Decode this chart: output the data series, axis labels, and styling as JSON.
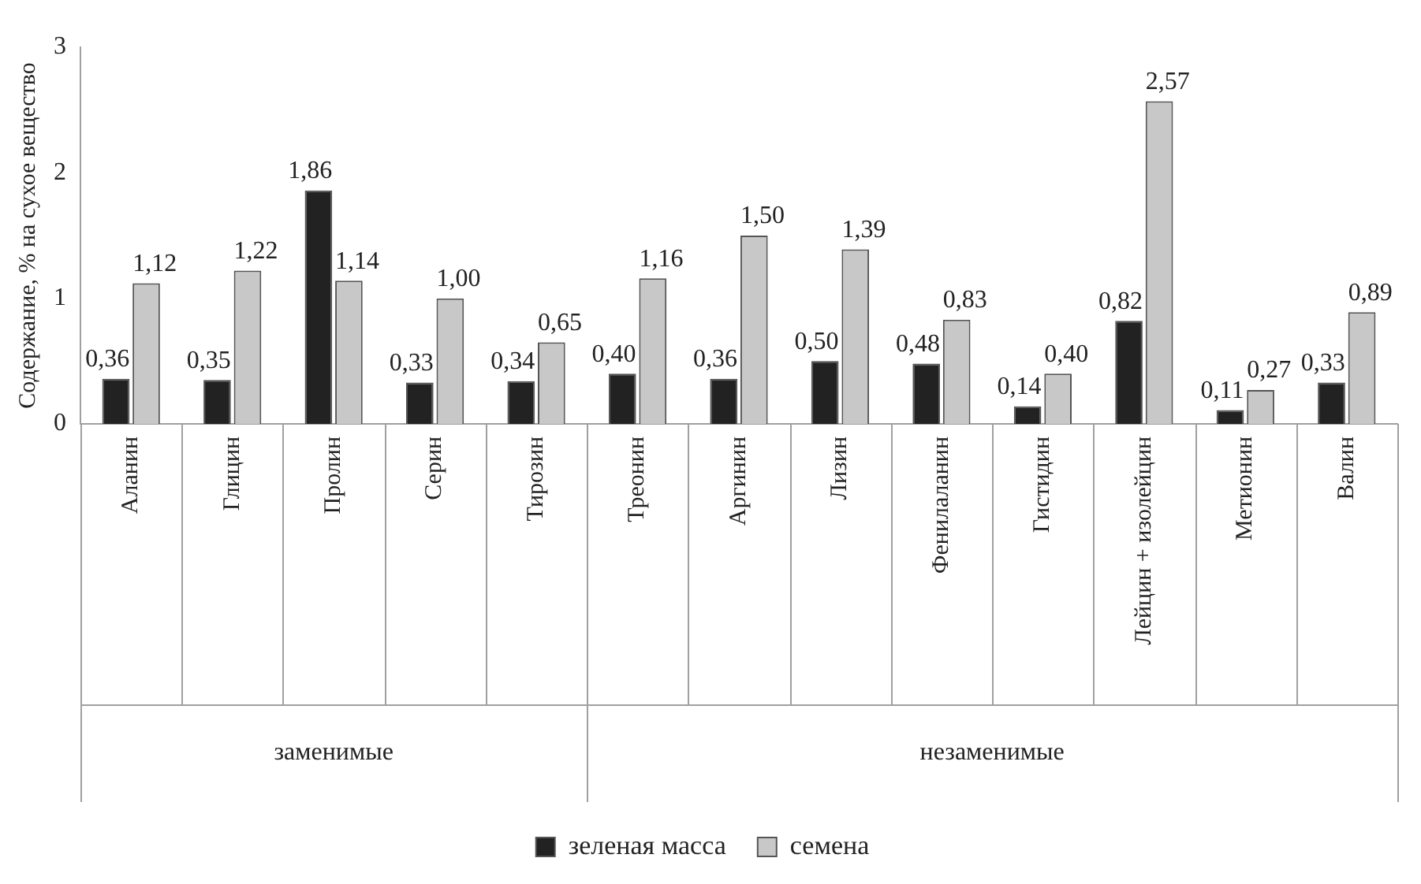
{
  "chart_data": {
    "type": "bar",
    "ylabel": "Содержание, % на сухое вещество",
    "categories": [
      "Аланин",
      "Глицин",
      "Пролин",
      "Серин",
      "Тирозин",
      "Треонин",
      "Аргинин",
      "Лизин",
      "Фенилаланин",
      "Гистидин",
      "Лейцин + изолейцин",
      "Метионин",
      "Валин"
    ],
    "series": [
      {
        "name": "зеленая масса",
        "color": "#222222",
        "values": [
          0.36,
          0.35,
          1.86,
          0.33,
          0.34,
          0.4,
          0.36,
          0.5,
          0.48,
          0.14,
          0.82,
          0.11,
          0.33
        ],
        "value_labels": [
          "0,36",
          "0,35",
          "1,86",
          "0,33",
          "0,34",
          "0,40",
          "0,36",
          "0,50",
          "0,48",
          "0,14",
          "0,82",
          "0,11",
          "0,33"
        ]
      },
      {
        "name": "семена",
        "color": "#c8c8c8",
        "values": [
          1.12,
          1.22,
          1.14,
          1.0,
          0.65,
          1.16,
          1.5,
          1.39,
          0.83,
          0.4,
          2.57,
          0.27,
          0.89
        ],
        "value_labels": [
          "1,12",
          "1,22",
          "1,14",
          "1,00",
          "0,65",
          "1,16",
          "1,50",
          "1,39",
          "0,83",
          "0,40",
          "2,57",
          "0,27",
          "0,89"
        ]
      }
    ],
    "annotations": [
      "заменимые",
      "незаменимые"
    ],
    "ylim": [
      0,
      3
    ],
    "yticks": [
      0,
      1,
      2,
      3
    ],
    "grid": false,
    "legend": "bottom"
  }
}
